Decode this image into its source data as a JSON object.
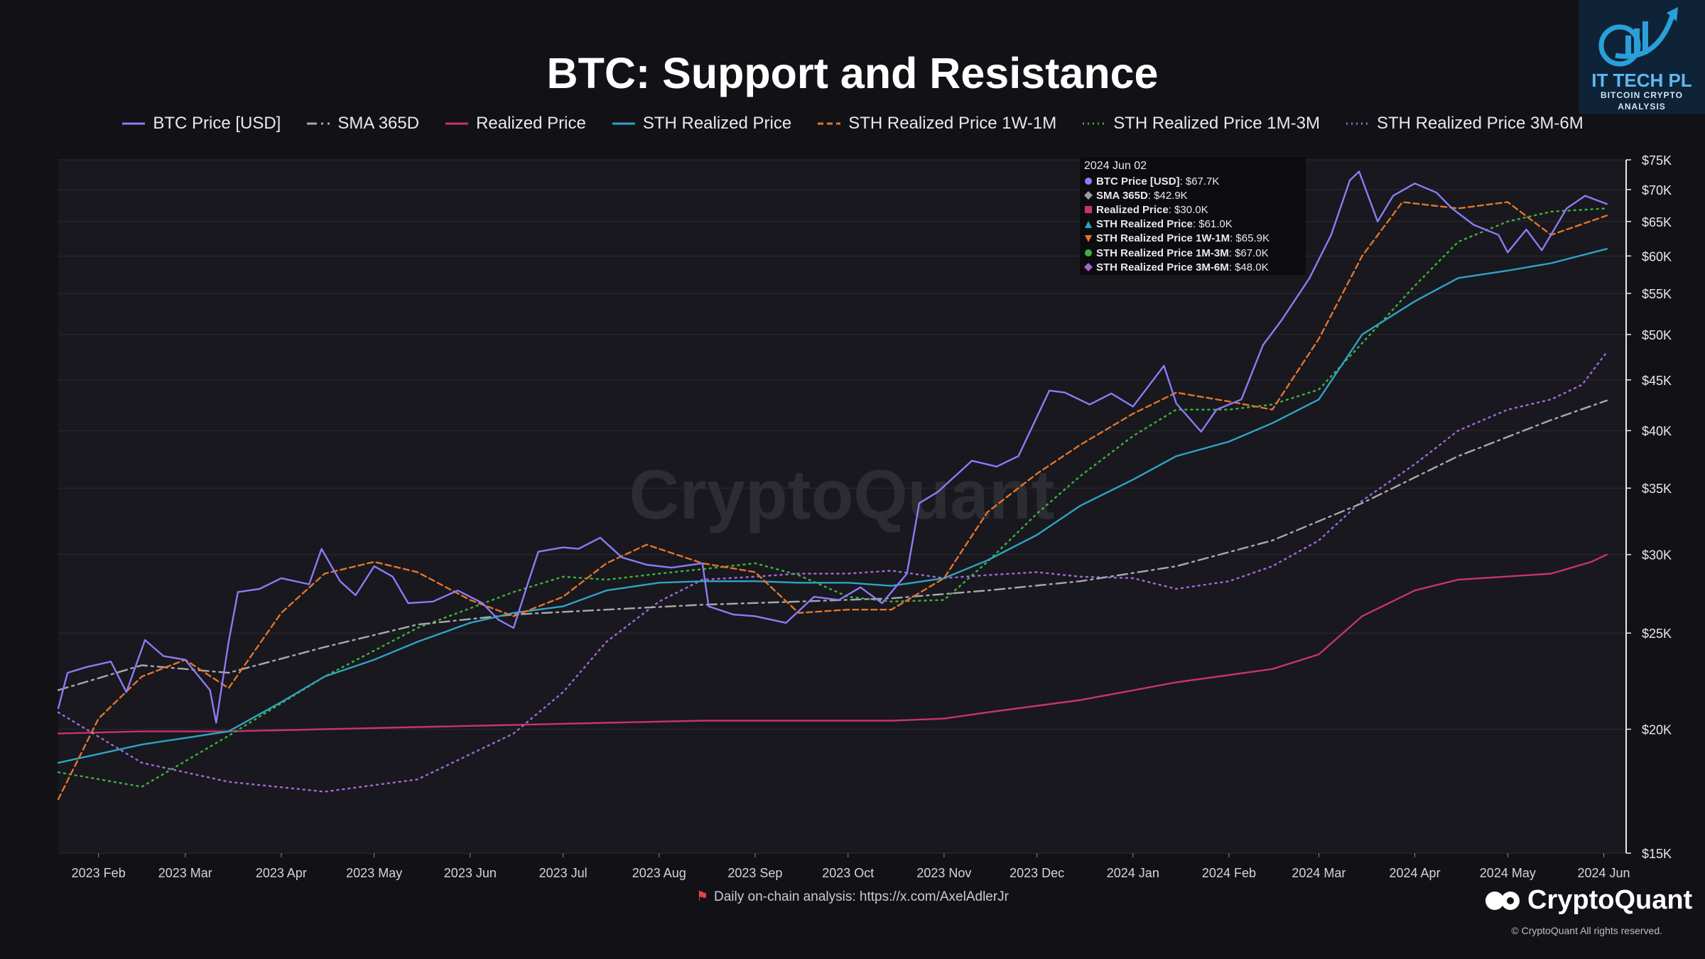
{
  "badge": {
    "line1": "IT TECH PL",
    "line2": "BITCOIN CRYPTO",
    "line3": "ANALYSIS"
  },
  "watermark": "CryptoQuant",
  "footer": {
    "link_text": "Daily on-chain analysis: https://x.com/AxelAdlerJr",
    "brand": "CryptoQuant",
    "copyright": "© CryptoQuant All rights reserved."
  },
  "tooltip": {
    "date": "2024 Jun 02",
    "rows": [
      {
        "label": "BTC Price [USD]",
        "value": ": $67.7K",
        "color": "#8b7cf6",
        "shape": "circle"
      },
      {
        "label": "SMA 365D",
        "value": ": $42.9K",
        "color": "#9a9aa4",
        "shape": "diamond"
      },
      {
        "label": "Realized Price",
        "value": ": $30.0K",
        "color": "#c8336e",
        "shape": "square"
      },
      {
        "label": "STH Realized Price",
        "value": ": $61.0K",
        "color": "#2fa3c4",
        "shape": "triangle"
      },
      {
        "label": "STH Realized Price 1W-1M",
        "value": ": $65.9K",
        "color": "#e0752c",
        "shape": "triangle-down"
      },
      {
        "label": "STH Realized Price 1M-3M",
        "value": ": $67.0K",
        "color": "#3fae3f",
        "shape": "circle"
      },
      {
        "label": "STH Realized Price 3M-6M",
        "value": ": $48.0K",
        "color": "#a266d6",
        "shape": "diamond"
      }
    ]
  },
  "chart_data": {
    "type": "line",
    "title": "BTC: Support and Resistance",
    "y_scale": "log",
    "ylim": [
      15000,
      75000
    ],
    "y_ticks": [
      15000,
      20000,
      25000,
      30000,
      35000,
      40000,
      45000,
      50000,
      55000,
      60000,
      65000,
      70000,
      75000
    ],
    "y_tick_labels": [
      "$15K",
      "$20K",
      "$25K",
      "$30K",
      "$35K",
      "$40K",
      "$45K",
      "$50K",
      "$55K",
      "$60K",
      "$65K",
      "$70K",
      "$75K"
    ],
    "xlim": [
      "2023-01-19",
      "2024-06-08"
    ],
    "x_tick_dates": [
      "2023-02-01",
      "2023-03-01",
      "2023-04-01",
      "2023-05-01",
      "2023-06-01",
      "2023-07-01",
      "2023-08-01",
      "2023-09-01",
      "2023-10-01",
      "2023-11-01",
      "2023-12-01",
      "2024-01-01",
      "2024-02-01",
      "2024-03-01",
      "2024-04-01",
      "2024-05-01",
      "2024-06-01"
    ],
    "x_tick_labels": [
      "2023 Feb",
      "2023 Mar",
      "2023 Apr",
      "2023 May",
      "2023 Jun",
      "2023 Jul",
      "2023 Aug",
      "2023 Sep",
      "2023 Oct",
      "2023 Nov",
      "2023 Dec",
      "2024 Jan",
      "2024 Feb",
      "2024 Mar",
      "2024 Apr",
      "2024 May",
      "2024 Jun"
    ],
    "grid": "horizontal",
    "legend_position": "top",
    "series": [
      {
        "name": "BTC Price [USD]",
        "color": "#8b7cf6",
        "style": "solid",
        "x": [
          "2023-01-19",
          "2023-01-22",
          "2023-01-28",
          "2023-02-05",
          "2023-02-10",
          "2023-02-16",
          "2023-02-22",
          "2023-03-01",
          "2023-03-09",
          "2023-03-11",
          "2023-03-15",
          "2023-03-18",
          "2023-03-25",
          "2023-04-01",
          "2023-04-10",
          "2023-04-14",
          "2023-04-20",
          "2023-04-25",
          "2023-05-01",
          "2023-05-07",
          "2023-05-12",
          "2023-05-20",
          "2023-05-28",
          "2023-06-05",
          "2023-06-10",
          "2023-06-15",
          "2023-06-20",
          "2023-06-23",
          "2023-07-01",
          "2023-07-06",
          "2023-07-13",
          "2023-07-20",
          "2023-07-28",
          "2023-08-05",
          "2023-08-15",
          "2023-08-17",
          "2023-08-25",
          "2023-09-01",
          "2023-09-11",
          "2023-09-20",
          "2023-09-28",
          "2023-10-05",
          "2023-10-12",
          "2023-10-20",
          "2023-10-24",
          "2023-10-30",
          "2023-11-10",
          "2023-11-18",
          "2023-11-25",
          "2023-12-05",
          "2023-12-10",
          "2023-12-18",
          "2023-12-25",
          "2024-01-01",
          "2024-01-11",
          "2024-01-15",
          "2024-01-23",
          "2024-01-28",
          "2024-02-05",
          "2024-02-12",
          "2024-02-18",
          "2024-02-27",
          "2024-03-05",
          "2024-03-11",
          "2024-03-14",
          "2024-03-20",
          "2024-03-25",
          "2024-04-01",
          "2024-04-08",
          "2024-04-13",
          "2024-04-20",
          "2024-04-28",
          "2024-05-01",
          "2024-05-07",
          "2024-05-12",
          "2024-05-20",
          "2024-05-26",
          "2024-06-02"
        ],
        "values": [
          21000,
          22800,
          23100,
          23400,
          21800,
          24600,
          23700,
          23500,
          21900,
          20300,
          24500,
          27500,
          27700,
          28400,
          28000,
          30400,
          28200,
          27300,
          29200,
          28500,
          26800,
          26900,
          27600,
          26800,
          25800,
          25300,
          28300,
          30200,
          30500,
          30400,
          31200,
          29800,
          29300,
          29100,
          29400,
          26600,
          26100,
          26000,
          25600,
          27200,
          27000,
          27800,
          26800,
          28700,
          33800,
          34700,
          37300,
          36800,
          37700,
          43900,
          43700,
          42500,
          43600,
          42300,
          46500,
          42600,
          39900,
          42000,
          43000,
          48800,
          51700,
          57000,
          63000,
          71500,
          73000,
          65000,
          69000,
          71000,
          69500,
          67000,
          64500,
          63000,
          60500,
          63800,
          60800,
          67000,
          69000,
          67700
        ]
      },
      {
        "name": "SMA 365D",
        "color": "#a8a8b0",
        "style": "dashdot",
        "x": [
          "2023-01-19",
          "2023-02-15",
          "2023-03-15",
          "2023-04-15",
          "2023-05-15",
          "2023-06-15",
          "2023-07-15",
          "2023-08-15",
          "2023-09-15",
          "2023-10-15",
          "2023-11-15",
          "2023-12-15",
          "2024-01-15",
          "2024-02-15",
          "2024-03-15",
          "2024-04-15",
          "2024-05-15",
          "2024-06-02"
        ],
        "values": [
          21900,
          23200,
          22800,
          24200,
          25500,
          26100,
          26400,
          26700,
          26900,
          27100,
          27600,
          28200,
          29200,
          31000,
          33800,
          37700,
          41000,
          42900
        ]
      },
      {
        "name": "Realized Price",
        "color": "#c8336e",
        "style": "solid",
        "x": [
          "2023-01-19",
          "2023-02-15",
          "2023-03-15",
          "2023-04-15",
          "2023-05-15",
          "2023-06-15",
          "2023-07-15",
          "2023-08-15",
          "2023-09-15",
          "2023-10-15",
          "2023-11-01",
          "2023-11-15",
          "2023-12-15",
          "2024-01-15",
          "2024-02-15",
          "2024-03-01",
          "2024-03-15",
          "2024-04-01",
          "2024-04-15",
          "2024-05-15",
          "2024-05-28",
          "2024-06-02"
        ],
        "values": [
          19800,
          19900,
          19900,
          20000,
          20100,
          20200,
          20300,
          20400,
          20400,
          20400,
          20500,
          20800,
          21400,
          22300,
          23000,
          23800,
          26000,
          27600,
          28300,
          28700,
          29500,
          30000
        ]
      },
      {
        "name": "STH Realized Price",
        "color": "#2fa3c4",
        "style": "solid",
        "x": [
          "2023-01-19",
          "2023-02-15",
          "2023-03-15",
          "2023-04-01",
          "2023-04-15",
          "2023-05-01",
          "2023-05-15",
          "2023-06-01",
          "2023-06-15",
          "2023-07-01",
          "2023-07-15",
          "2023-08-01",
          "2023-08-15",
          "2023-09-01",
          "2023-09-15",
          "2023-10-01",
          "2023-10-15",
          "2023-11-01",
          "2023-11-15",
          "2023-12-01",
          "2023-12-15",
          "2024-01-01",
          "2024-01-15",
          "2024-02-01",
          "2024-02-15",
          "2024-03-01",
          "2024-03-15",
          "2024-04-01",
          "2024-04-15",
          "2024-05-01",
          "2024-05-15",
          "2024-06-02"
        ],
        "values": [
          18500,
          19300,
          19900,
          21300,
          22600,
          23500,
          24500,
          25600,
          26200,
          26600,
          27600,
          28100,
          28200,
          28200,
          28100,
          28100,
          27900,
          28400,
          29600,
          31400,
          33600,
          35700,
          37700,
          39000,
          40700,
          43000,
          50000,
          54000,
          57000,
          58000,
          59000,
          61000
        ]
      },
      {
        "name": "STH Realized Price 1W-1M",
        "color": "#e0752c",
        "style": "dashed",
        "x": [
          "2023-01-19",
          "2023-02-01",
          "2023-02-15",
          "2023-03-01",
          "2023-03-15",
          "2023-04-01",
          "2023-04-15",
          "2023-05-01",
          "2023-05-15",
          "2023-06-01",
          "2023-06-15",
          "2023-07-01",
          "2023-07-15",
          "2023-07-28",
          "2023-08-15",
          "2023-09-01",
          "2023-09-15",
          "2023-10-01",
          "2023-10-15",
          "2023-11-01",
          "2023-11-15",
          "2023-12-01",
          "2023-12-15",
          "2024-01-01",
          "2024-01-15",
          "2024-02-01",
          "2024-02-15",
          "2024-03-01",
          "2024-03-15",
          "2024-03-28",
          "2024-04-15",
          "2024-05-01",
          "2024-05-15",
          "2024-06-02"
        ],
        "values": [
          17000,
          20500,
          22600,
          23500,
          22000,
          26200,
          28700,
          29500,
          28800,
          27000,
          26000,
          27200,
          29400,
          30700,
          29400,
          28800,
          26200,
          26400,
          26400,
          28400,
          33100,
          36200,
          38700,
          41600,
          43700,
          42800,
          42000,
          49500,
          60000,
          68000,
          67000,
          68000,
          63000,
          65900
        ]
      },
      {
        "name": "STH Realized Price 1M-3M",
        "color": "#3fae3f",
        "style": "dotted",
        "x": [
          "2023-01-19",
          "2023-02-15",
          "2023-03-15",
          "2023-04-15",
          "2023-05-15",
          "2023-06-15",
          "2023-07-01",
          "2023-07-15",
          "2023-08-01",
          "2023-08-15",
          "2023-09-01",
          "2023-09-15",
          "2023-10-01",
          "2023-10-15",
          "2023-11-01",
          "2023-11-15",
          "2023-12-01",
          "2023-12-15",
          "2024-01-01",
          "2024-01-15",
          "2024-02-01",
          "2024-02-15",
          "2024-03-01",
          "2024-03-15",
          "2024-04-01",
          "2024-04-15",
          "2024-05-01",
          "2024-05-15",
          "2024-06-02"
        ],
        "values": [
          18100,
          17500,
          19700,
          22600,
          25300,
          27500,
          28500,
          28300,
          28700,
          29000,
          29400,
          28600,
          27200,
          26900,
          27000,
          29500,
          33000,
          36000,
          39500,
          42000,
          42000,
          42500,
          44000,
          49000,
          56000,
          62000,
          65000,
          66500,
          67000
        ]
      },
      {
        "name": "STH Realized Price 3M-6M",
        "color": "#a266d6",
        "style": "dotted",
        "x": [
          "2023-01-19",
          "2023-02-15",
          "2023-03-15",
          "2023-04-15",
          "2023-05-15",
          "2023-06-15",
          "2023-07-01",
          "2023-07-15",
          "2023-08-01",
          "2023-08-15",
          "2023-09-01",
          "2023-09-15",
          "2023-10-01",
          "2023-10-15",
          "2023-11-01",
          "2023-11-15",
          "2023-12-01",
          "2023-12-15",
          "2024-01-01",
          "2024-01-15",
          "2024-02-01",
          "2024-02-15",
          "2024-03-01",
          "2024-03-15",
          "2024-04-01",
          "2024-04-15",
          "2024-05-01",
          "2024-05-15",
          "2024-05-25",
          "2024-06-02"
        ],
        "values": [
          20800,
          18500,
          17700,
          17300,
          17800,
          19800,
          21800,
          24500,
          26900,
          28300,
          28500,
          28700,
          28700,
          28900,
          28400,
          28600,
          28800,
          28500,
          28400,
          27700,
          28200,
          29200,
          31000,
          34000,
          37000,
          40000,
          42000,
          43000,
          44500,
          48000
        ]
      }
    ]
  }
}
